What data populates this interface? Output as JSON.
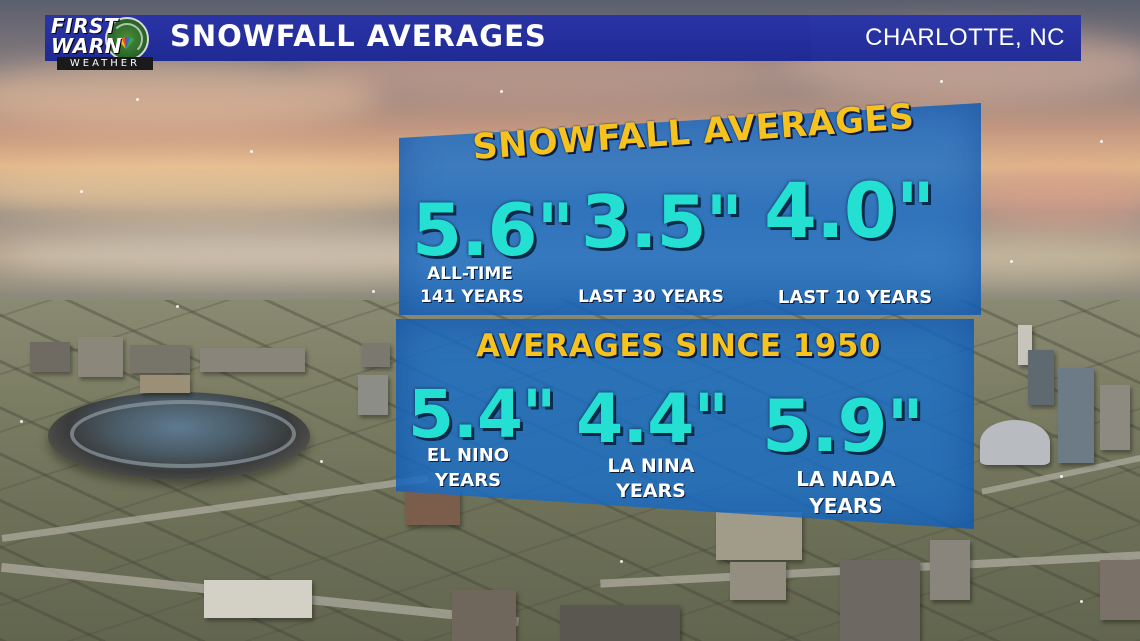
{
  "header": {
    "logo": {
      "line1": "FIRST",
      "line2": "WARN",
      "line3": "WEATHER"
    },
    "title": "SNOWFALL AVERAGES",
    "location": "CHARLOTTE, NC"
  },
  "panel_top": {
    "heading": "SNOWFALL AVERAGES",
    "stats": [
      {
        "value": "5.6\"",
        "label_line1": "ALL-TIME",
        "label_line2": "141 YEARS"
      },
      {
        "value": "3.5\"",
        "label_line1": "LAST 30 YEARS",
        "label_line2": ""
      },
      {
        "value": "4.0\"",
        "label_line1": "LAST 10 YEARS",
        "label_line2": ""
      }
    ]
  },
  "panel_bottom": {
    "heading": "AVERAGES SINCE 1950",
    "stats": [
      {
        "value": "5.4\"",
        "label_line1": "EL NINO",
        "label_line2": "YEARS"
      },
      {
        "value": "4.4\"",
        "label_line1": "LA NINA",
        "label_line2": "YEARS"
      },
      {
        "value": "5.9\"",
        "label_line1": "LA NADA",
        "label_line2": "YEARS"
      }
    ]
  },
  "colors": {
    "header_bg": "#1f2a94",
    "panel_bg": "#1e6ec8",
    "heading_text": "#f6c21d",
    "value_text": "#24e0d2",
    "label_text": "#ffffff"
  },
  "icons": [
    "radar-icon",
    "nbc-peacock-icon"
  ]
}
